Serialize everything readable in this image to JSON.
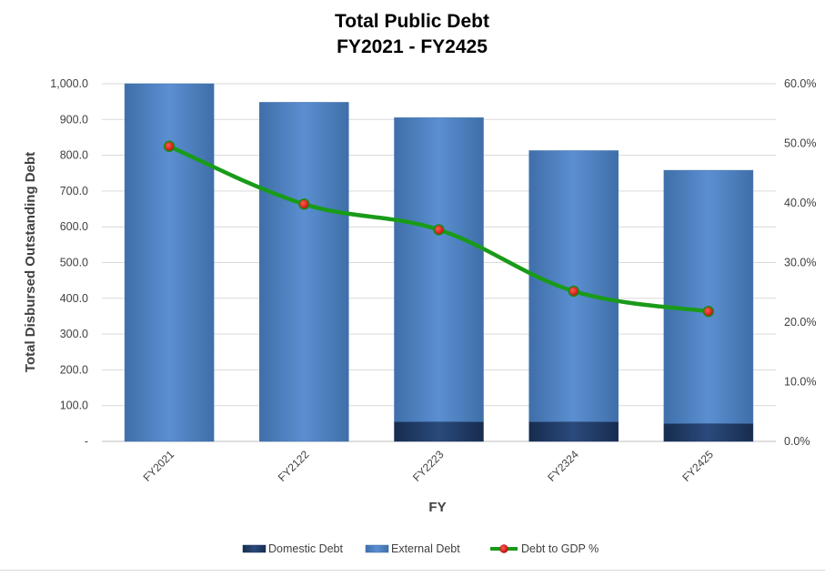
{
  "chart_data": {
    "type": "bar",
    "title": [
      "Total Public Debt",
      "FY2021 - FY2425"
    ],
    "xlabel": "FY",
    "ylabel": "Total Disbursed Outstanding Debt",
    "y2label": "",
    "categories": [
      "FY2021",
      "FY2122",
      "FY2223",
      "FY2324",
      "FY2425"
    ],
    "stacked": true,
    "series": [
      {
        "name": "Domestic Debt",
        "type": "bar",
        "axis": "left",
        "color": "#1f3864",
        "values": [
          0,
          0,
          55,
          55,
          50
        ]
      },
      {
        "name": "External Debt",
        "type": "bar",
        "axis": "left",
        "color": "#4f81bd",
        "values": [
          1000,
          948,
          850,
          758,
          708
        ]
      },
      {
        "name": "Debt to GDP %",
        "type": "line",
        "axis": "right",
        "color": "#199b19",
        "marker_color": "#e02020",
        "values": [
          49.5,
          39.8,
          35.5,
          25.2,
          21.8
        ]
      }
    ],
    "ylim": [
      0,
      1000
    ],
    "y_ticks": [
      0,
      100,
      200,
      300,
      400,
      500,
      600,
      700,
      800,
      900,
      1000
    ],
    "y_tick_labels": [
      "-",
      "100.0",
      "200.0",
      "300.0",
      "400.0",
      "500.0",
      "600.0",
      "700.0",
      "800.0",
      "900.0",
      "1,000.0"
    ],
    "y2lim": [
      0,
      60
    ],
    "y2_ticks": [
      0,
      10,
      20,
      30,
      40,
      50,
      60
    ],
    "y2_tick_labels": [
      "0.0%",
      "10.0%",
      "20.0%",
      "30.0%",
      "40.0%",
      "50.0%",
      "60.0%"
    ],
    "grid": true,
    "legend_position": "bottom"
  }
}
